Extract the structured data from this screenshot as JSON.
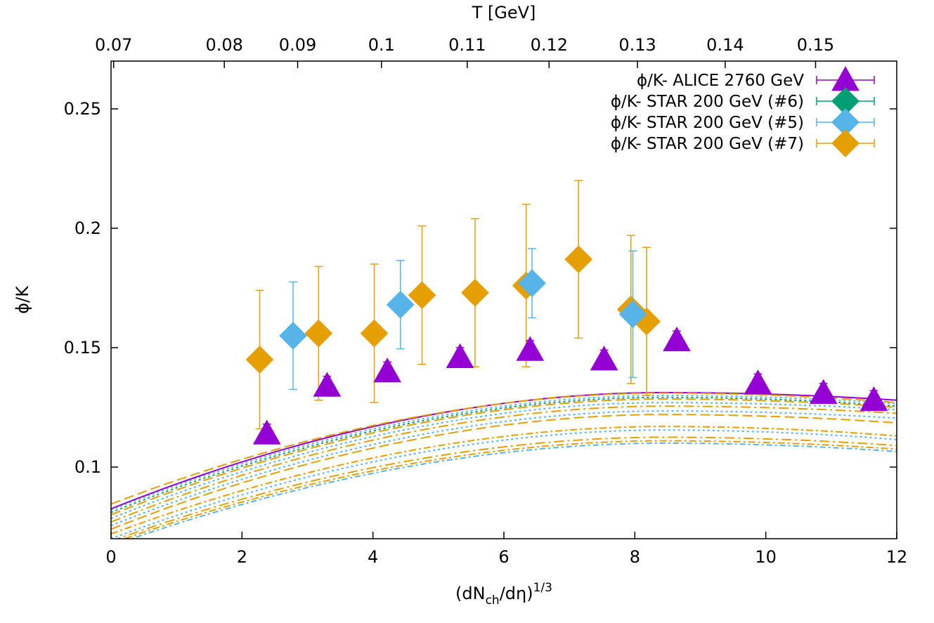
{
  "chart_data": {
    "type": "scatter",
    "title": "",
    "xlabel": "(dN",
    "xlabel_sub": "ch",
    "xlabel_mid": "/dη)",
    "xlabel_sup": "1/3",
    "ylabel": "ϕ/K",
    "x2label": "T [GeV]",
    "xlim": [
      0,
      12
    ],
    "ylim": [
      0.07,
      0.27
    ],
    "xticks": [
      0,
      2,
      4,
      6,
      8,
      10,
      12
    ],
    "xtick_labels": [
      "0",
      "2",
      "4",
      "6",
      "8",
      "10",
      "12"
    ],
    "yticks": [
      0.1,
      0.15,
      0.2,
      0.25
    ],
    "ytick_labels": [
      "0.1",
      "0.15",
      "0.2",
      "0.25"
    ],
    "x2ticks": [
      {
        "label": "0.07",
        "x": 0.04
      },
      {
        "label": "0.08",
        "x": 1.73
      },
      {
        "label": "0.09",
        "x": 2.85
      },
      {
        "label": "0.1",
        "x": 4.13
      },
      {
        "label": "0.11",
        "x": 5.44
      },
      {
        "label": "0.12",
        "x": 6.69
      },
      {
        "label": "0.13",
        "x": 8.04
      },
      {
        "label": "0.14",
        "x": 9.38
      },
      {
        "label": "0.15",
        "x": 10.76
      }
    ],
    "grid": false,
    "legend_position": "top-right",
    "series": [
      {
        "name": "ϕ/K- ALICE 2760 GeV",
        "color": "#9400d3",
        "marker": "triangle",
        "points": [
          {
            "x": 2.38,
            "y": 0.114,
            "err": 0.004
          },
          {
            "x": 3.3,
            "y": 0.134,
            "err": 0.004
          },
          {
            "x": 4.22,
            "y": 0.14,
            "err": 0.004
          },
          {
            "x": 5.33,
            "y": 0.146,
            "err": 0.004
          },
          {
            "x": 6.4,
            "y": 0.149,
            "err": 0.004
          },
          {
            "x": 7.53,
            "y": 0.145,
            "err": 0.004
          },
          {
            "x": 8.64,
            "y": 0.153,
            "err": 0.004
          },
          {
            "x": 9.88,
            "y": 0.135,
            "err": 0.004
          },
          {
            "x": 10.88,
            "y": 0.131,
            "err": 0.004
          },
          {
            "x": 11.65,
            "y": 0.128,
            "err": 0.004
          }
        ]
      },
      {
        "name": "ϕ/K- STAR 200 GeV (#6)",
        "color": "#009e73",
        "marker": "diamond",
        "points": []
      },
      {
        "name": "ϕ/K- STAR 200 GeV (#5)",
        "color": "#56b4e9",
        "marker": "diamond",
        "points": [
          {
            "x": 2.78,
            "y": 0.155,
            "err": 0.0225
          },
          {
            "x": 4.42,
            "y": 0.168,
            "err": 0.0185
          },
          {
            "x": 6.43,
            "y": 0.177,
            "err": 0.0145
          },
          {
            "x": 7.97,
            "y": 0.164,
            "err": 0.0265
          }
        ]
      },
      {
        "name": "ϕ/K- STAR 200 GeV (#7)",
        "color": "#e69f00",
        "marker": "diamond",
        "points": [
          {
            "x": 2.27,
            "y": 0.145,
            "err": 0.029
          },
          {
            "x": 3.17,
            "y": 0.156,
            "err": 0.028
          },
          {
            "x": 4.02,
            "y": 0.156,
            "err": 0.029
          },
          {
            "x": 4.75,
            "y": 0.172,
            "err": 0.029
          },
          {
            "x": 5.56,
            "y": 0.173,
            "err": 0.031
          },
          {
            "x": 6.34,
            "y": 0.176,
            "err": 0.034
          },
          {
            "x": 7.14,
            "y": 0.187,
            "err": 0.033
          },
          {
            "x": 7.94,
            "y": 0.166,
            "err": 0.031
          },
          {
            "x": 8.18,
            "y": 0.161,
            "err": 0.031
          }
        ]
      }
    ],
    "model_curves": [
      {
        "color": "#9400d3",
        "dash": "",
        "y0": 0.0825,
        "ymax": 0.1312,
        "yend": 0.128
      },
      {
        "color": "#e69f00",
        "dash": "14 6",
        "y0": 0.0845,
        "ymax": 0.131,
        "yend": 0.127
      },
      {
        "color": "#56b4e9",
        "dash": "3 4",
        "y0": 0.082,
        "ymax": 0.13,
        "yend": 0.1265
      },
      {
        "color": "#009e73",
        "dash": "3 4",
        "y0": 0.081,
        "ymax": 0.1292,
        "yend": 0.1255
      },
      {
        "color": "#e69f00",
        "dash": "14 6",
        "y0": 0.08,
        "ymax": 0.1285,
        "yend": 0.125
      },
      {
        "color": "#56b4e9",
        "dash": "3 4",
        "y0": 0.0785,
        "ymax": 0.127,
        "yend": 0.124
      },
      {
        "color": "#e69f00",
        "dash": "14 5 3 5",
        "y0": 0.077,
        "ymax": 0.1255,
        "yend": 0.1225
      },
      {
        "color": "#56b4e9",
        "dash": "3 4",
        "y0": 0.0755,
        "ymax": 0.1235,
        "yend": 0.1205
      },
      {
        "color": "#e69f00",
        "dash": "14 6",
        "y0": 0.074,
        "ymax": 0.122,
        "yend": 0.1185
      },
      {
        "color": "#e69f00",
        "dash": "10 4 3 4",
        "y0": 0.072,
        "ymax": 0.117,
        "yend": 0.113
      },
      {
        "color": "#56b4e9",
        "dash": "3 4",
        "y0": 0.07,
        "ymax": 0.1155,
        "yend": 0.1115
      },
      {
        "color": "#e69f00",
        "dash": "14 5 3 5",
        "y0": 0.069,
        "ymax": 0.1125,
        "yend": 0.109
      },
      {
        "color": "#e69f00",
        "dash": "10 4 3 4",
        "y0": 0.068,
        "ymax": 0.111,
        "yend": 0.1075
      },
      {
        "color": "#56b4e9",
        "dash": "8 4 3 4",
        "y0": 0.067,
        "ymax": 0.11,
        "yend": 0.1065
      }
    ]
  }
}
